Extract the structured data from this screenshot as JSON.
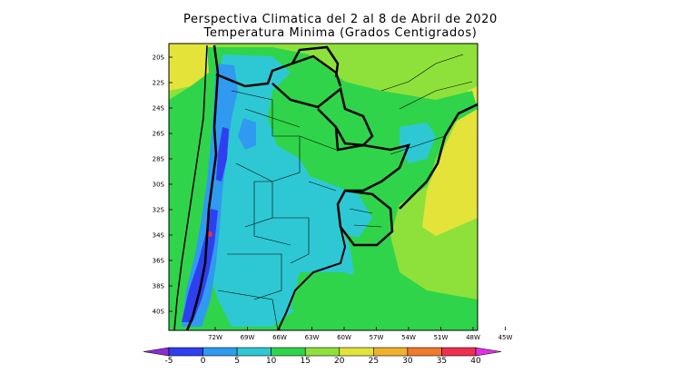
{
  "title": {
    "line1": "Perspectiva Climatica del 2 al 8 de Abril de 2020",
    "line2": "Temperatura Minima (Grados Centigrados)"
  },
  "map": {
    "lat_ticks": [
      "20S",
      "22S",
      "24S",
      "26S",
      "28S",
      "30S",
      "32S",
      "34S",
      "36S",
      "38S",
      "40S"
    ],
    "lon_ticks": [
      "72W",
      "69W",
      "66W",
      "63W",
      "60W",
      "57W",
      "54W",
      "51W",
      "48W",
      "45W"
    ],
    "region": "Argentina, Uruguay, Paraguay, southern Brazil, Chile"
  },
  "colorbar": {
    "labels": [
      "-5",
      "0",
      "5",
      "10",
      "15",
      "20",
      "25",
      "30",
      "35",
      "40"
    ],
    "colors": [
      "#8e2bd4",
      "#2f3ff0",
      "#2f9af0",
      "#2ec8d4",
      "#2fd44a",
      "#8ee13a",
      "#e3e33a",
      "#f0b22e",
      "#f07a2e",
      "#ee3050",
      "#e62ee6"
    ]
  },
  "palette": {
    "very_cold": "#2f3ff0",
    "cold": "#2f9af0",
    "cool": "#2ec8d4",
    "mild": "#2fd44a",
    "warm": "#8ee13a",
    "hot": "#e3e33a"
  }
}
